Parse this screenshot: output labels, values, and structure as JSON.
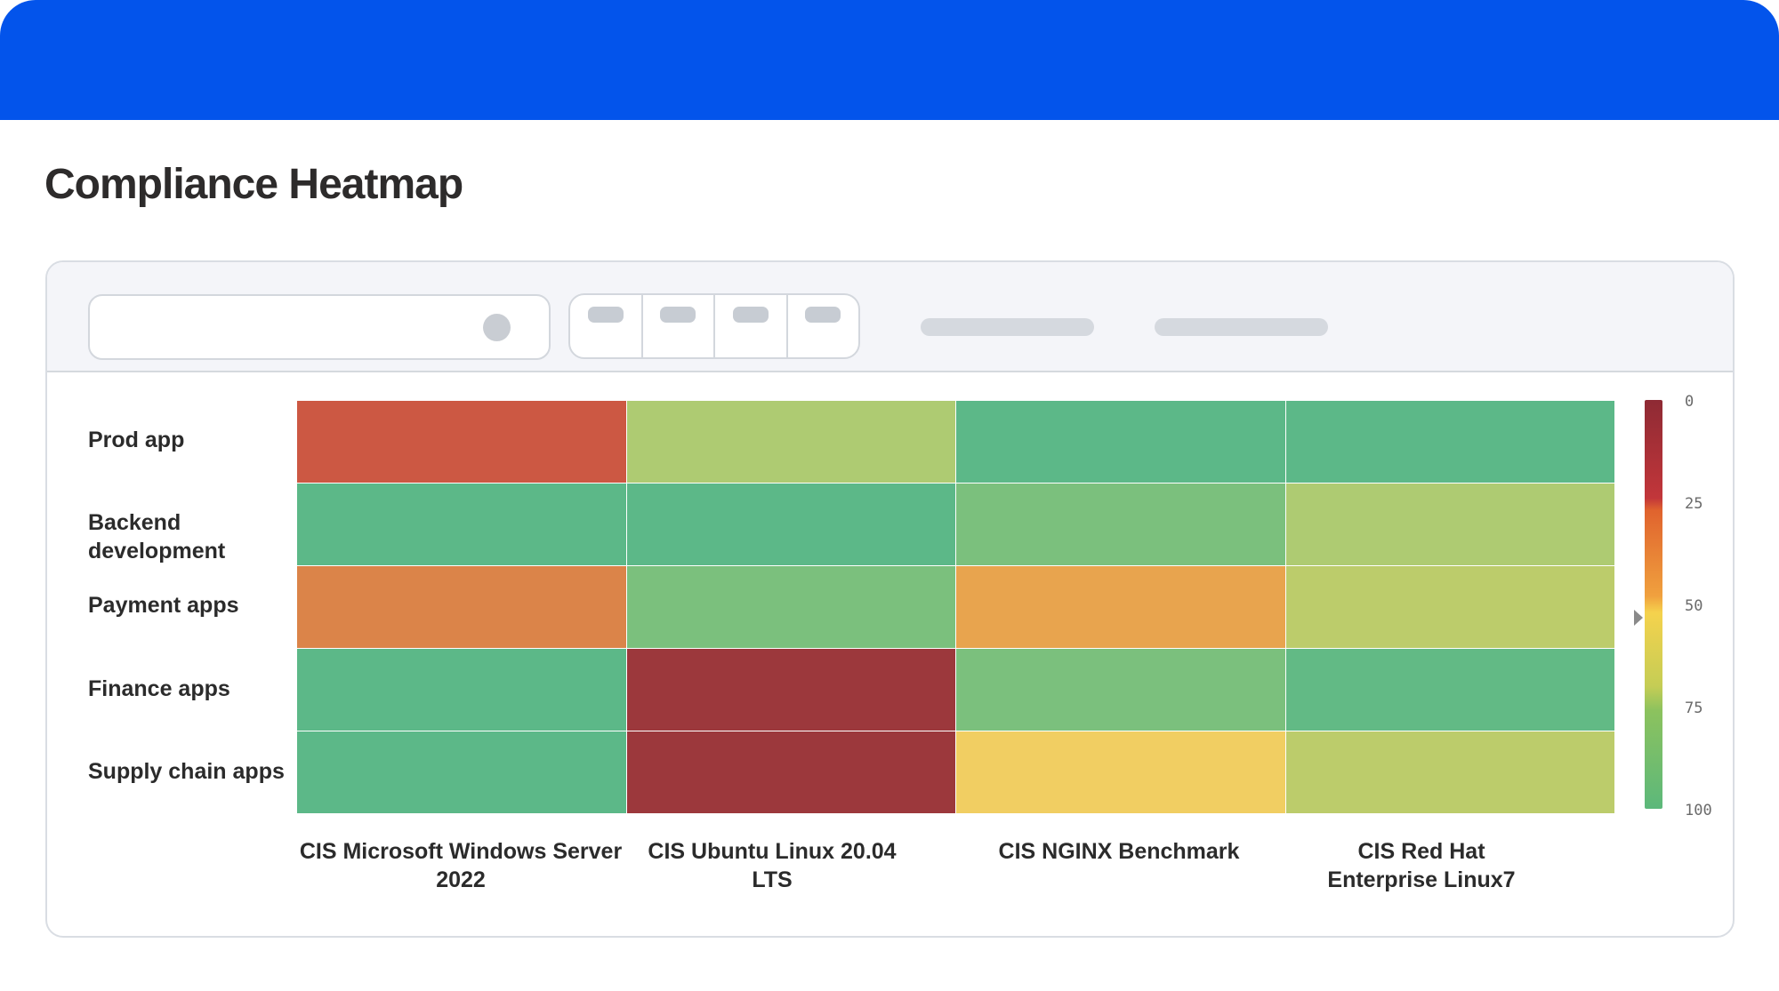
{
  "page": {
    "title": "Compliance Heatmap"
  },
  "colors": {
    "banner": "#0354EB"
  },
  "heatmap": {
    "rows": [
      "Prod app",
      "Backend development",
      "Payment apps",
      "Finance apps",
      "Supply chain apps"
    ],
    "columns": [
      "CIS Microsoft Windows Server 2022",
      "CIS Ubuntu Linux 20.04 LTS",
      "CIS NGINX Benchmark",
      "CIS Red Hat Enterprise Linux7"
    ],
    "cell_colors": [
      [
        "#CC5843",
        "#AECB72",
        "#5CB888",
        "#5CB888"
      ],
      [
        "#5CB888",
        "#5CB888",
        "#7BC07D",
        "#AECB72"
      ],
      [
        "#DB8449",
        "#7BC07D",
        "#E8A44E",
        "#BCCC6B"
      ],
      [
        "#5CB888",
        "#9C383C",
        "#7BC07D",
        "#62BA85"
      ],
      [
        "#5CB888",
        "#9C383C",
        "#F1CE62",
        "#BCCC6B"
      ]
    ],
    "legend_ticks": [
      "0",
      "25",
      "50",
      "75",
      "100"
    ]
  },
  "chart_data": {
    "type": "heatmap",
    "title": "Compliance Heatmap",
    "y_categories": [
      "Prod app",
      "Backend development",
      "Payment apps",
      "Finance apps",
      "Supply chain apps"
    ],
    "x_categories": [
      "CIS Microsoft Windows Server 2022",
      "CIS Ubuntu Linux 20.04 LTS",
      "CIS NGINX Benchmark",
      "CIS Red Hat Enterprise Linux7"
    ],
    "values": [
      [
        30,
        70,
        95,
        95
      ],
      [
        95,
        95,
        85,
        70
      ],
      [
        40,
        85,
        45,
        68
      ],
      [
        95,
        5,
        85,
        92
      ],
      [
        95,
        5,
        55,
        68
      ]
    ],
    "color_scale": {
      "min": 0,
      "max": 100,
      "low_color": "#8e2a34",
      "mid_color": "#f5d24d",
      "high_color": "#5cb87b"
    },
    "colorbar_ticks": [
      0,
      25,
      50,
      75,
      100
    ],
    "colorbar_marker_value": 53,
    "legend_position": "right"
  }
}
